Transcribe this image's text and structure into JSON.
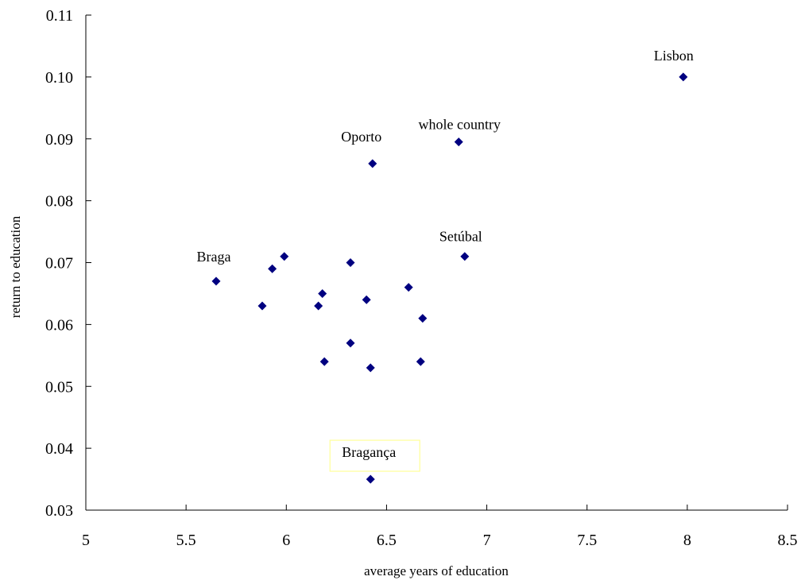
{
  "chart_data": {
    "type": "scatter",
    "title": "",
    "xlabel": "average years of education",
    "ylabel": "return to education",
    "xlim": [
      5,
      8.5
    ],
    "ylim": [
      0.03,
      0.11
    ],
    "xticks": [
      "5",
      "5.5",
      "6",
      "6.5",
      "7",
      "7.5",
      "8",
      "8.5"
    ],
    "yticks": [
      "0.03",
      "0.04",
      "0.05",
      "0.06",
      "0.07",
      "0.08",
      "0.09",
      "0.10",
      "0.11"
    ],
    "grid": false,
    "marker_color": "#000080",
    "points": [
      {
        "x": 7.98,
        "y": 0.1,
        "label": "Lisbon"
      },
      {
        "x": 6.86,
        "y": 0.0895,
        "label": "whole country"
      },
      {
        "x": 6.43,
        "y": 0.086,
        "label": "Oporto"
      },
      {
        "x": 6.89,
        "y": 0.071,
        "label": "Setúbal"
      },
      {
        "x": 5.65,
        "y": 0.067,
        "label": "Braga"
      },
      {
        "x": 6.42,
        "y": 0.035,
        "label": "Bragança"
      },
      {
        "x": 5.99,
        "y": 0.071,
        "label": ""
      },
      {
        "x": 5.93,
        "y": 0.069,
        "label": ""
      },
      {
        "x": 6.32,
        "y": 0.07,
        "label": ""
      },
      {
        "x": 6.18,
        "y": 0.065,
        "label": ""
      },
      {
        "x": 6.61,
        "y": 0.066,
        "label": ""
      },
      {
        "x": 5.88,
        "y": 0.063,
        "label": ""
      },
      {
        "x": 6.16,
        "y": 0.063,
        "label": ""
      },
      {
        "x": 6.4,
        "y": 0.064,
        "label": ""
      },
      {
        "x": 6.68,
        "y": 0.061,
        "label": ""
      },
      {
        "x": 6.32,
        "y": 0.057,
        "label": ""
      },
      {
        "x": 6.19,
        "y": 0.054,
        "label": ""
      },
      {
        "x": 6.42,
        "y": 0.053,
        "label": ""
      },
      {
        "x": 6.67,
        "y": 0.054,
        "label": ""
      }
    ]
  }
}
